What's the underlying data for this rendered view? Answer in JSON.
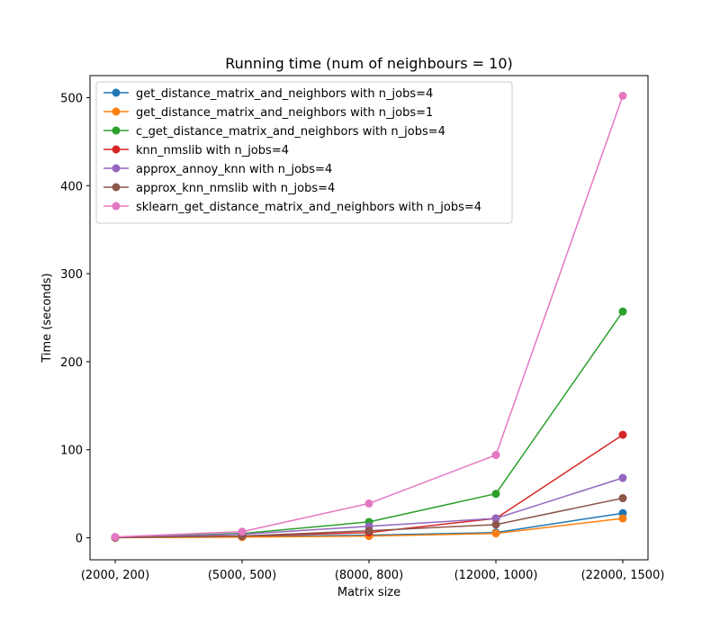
{
  "chart_data": {
    "type": "line",
    "title": "Running time (num of neighbours = 10)",
    "xlabel": "Matrix size",
    "ylabel": "Time (seconds)",
    "categories": [
      "(2000, 200)",
      "(5000, 500)",
      "(8000, 800)",
      "(12000, 1000)",
      "(22000, 1500)"
    ],
    "ylim": [
      -25,
      525
    ],
    "yticks": [
      0,
      100,
      200,
      300,
      400,
      500
    ],
    "grid": false,
    "legend_position": "top-left",
    "series": [
      {
        "name": "get_distance_matrix_and_neighbors with n_jobs=4",
        "color": "#1f77b4",
        "values": [
          0.1,
          1.5,
          3,
          6,
          28
        ]
      },
      {
        "name": "get_distance_matrix_and_neighbors with n_jobs=1",
        "color": "#ff7f0e",
        "values": [
          0.1,
          0.8,
          2,
          5,
          22
        ]
      },
      {
        "name": "c_get_distance_matrix_and_neighbors with n_jobs=4",
        "color": "#2ca02c",
        "values": [
          0.5,
          5,
          18,
          50,
          257
        ]
      },
      {
        "name": "knn_nmslib with n_jobs=4",
        "color": "#d62728",
        "values": [
          0.2,
          2,
          6,
          22,
          117
        ]
      },
      {
        "name": "approx_annoy_knn with n_jobs=4",
        "color": "#9467bd",
        "values": [
          0.5,
          4,
          13,
          22,
          68
        ]
      },
      {
        "name": "approx_knn_nmslib with n_jobs=4",
        "color": "#8c564b",
        "values": [
          0.2,
          2,
          8,
          15,
          45
        ]
      },
      {
        "name": "sklearn_get_distance_matrix_and_neighbors with n_jobs=4",
        "color": "#e377c2",
        "values": [
          1,
          7,
          39,
          94,
          502
        ]
      }
    ]
  }
}
